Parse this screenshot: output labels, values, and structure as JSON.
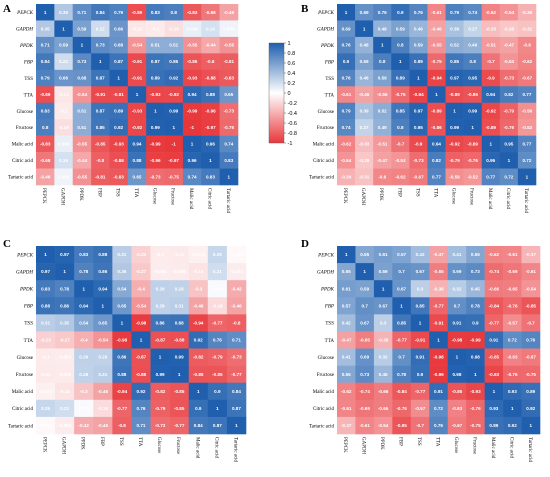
{
  "chart_data": {
    "type": "heatmap",
    "variables": [
      "PEPCK",
      "GAPDH",
      "PPDK",
      "FBP",
      "TSS",
      "TTA",
      "Glucose",
      "Fructose",
      "Malic acid",
      "Citric acid",
      "Tartaric acid"
    ],
    "italic_variables": [
      "PEPCK",
      "GAPDH",
      "PPDK",
      "FBP"
    ],
    "colorbar": {
      "ticks": [
        "1",
        "0.8",
        "0.6",
        "0.4",
        "0.2",
        "0",
        "-0.2",
        "-0.4",
        "-0.6",
        "-0.8",
        "-1"
      ],
      "vmin": -1,
      "vmax": 1,
      "high_color": "#1f5fae",
      "mid_color": "#ffffff",
      "low_color": "#e8373b"
    },
    "panels": [
      {
        "label": "A",
        "matrix": [
          [
            "1",
            "0.35",
            "0.71",
            "0.84",
            "0.79",
            "-0.89",
            "0.83",
            "0.8",
            "-0.83",
            "-0.68",
            "-0.46"
          ],
          [
            "0.35",
            "1",
            "0.59",
            "0.22",
            "0.66",
            "-0.12",
            "-0.1",
            "-0.16",
            "0.099",
            "0.19",
            "0.066"
          ],
          [
            "0.71",
            "0.59",
            "1",
            "0.73",
            "0.68",
            "-0.54",
            "0.51",
            "0.51",
            "-0.55",
            "-0.44",
            "-0.55"
          ],
          [
            "0.84",
            "0.22",
            "0.73",
            "1",
            "0.87",
            "-0.91",
            "0.87",
            "0.85",
            "-0.85",
            "-0.8",
            "-0.81"
          ],
          [
            "0.79",
            "0.66",
            "0.68",
            "0.87",
            "1",
            "-0.91",
            "0.89",
            "0.92",
            "-0.93",
            "-0.88",
            "-0.83"
          ],
          [
            "-0.89",
            "-0.12",
            "-0.54",
            "-0.91",
            "-0.91",
            "1",
            "-0.93",
            "-0.92",
            "0.94",
            "0.88",
            "0.65"
          ],
          [
            "0.83",
            "-0.1",
            "0.51",
            "0.87",
            "0.89",
            "-0.93",
            "1",
            "0.99",
            "-0.99",
            "-0.96",
            "-0.73"
          ],
          [
            "0.8",
            "-0.16",
            "0.51",
            "0.85",
            "0.92",
            "-0.92",
            "0.99",
            "1",
            "-1",
            "-0.97",
            "-0.75"
          ],
          [
            "-0.83",
            "0.099",
            "-0.55",
            "-0.85",
            "-0.93",
            "0.94",
            "-0.99",
            "-1",
            "1",
            "0.96",
            "0.74"
          ],
          [
            "-0.68",
            "0.19",
            "-0.44",
            "-0.8",
            "-0.88",
            "0.88",
            "-0.96",
            "-0.97",
            "0.96",
            "1",
            "0.83"
          ],
          [
            "-0.46",
            "0.066",
            "-0.55",
            "-0.81",
            "-0.83",
            "0.65",
            "-0.73",
            "-0.75",
            "0.74",
            "0.83",
            "1"
          ]
        ]
      },
      {
        "label": "B",
        "matrix": [
          [
            "1",
            "0.69",
            "0.76",
            "0.9",
            "0.76",
            "-0.61",
            "0.79",
            "0.74",
            "-0.62",
            "-0.54",
            "-0.39"
          ],
          [
            "0.69",
            "1",
            "0.48",
            "0.59",
            "0.46",
            "-0.46",
            "0.39",
            "0.27",
            "-0.33",
            "-0.28",
            "-0.31"
          ],
          [
            "0.76",
            "0.48",
            "1",
            "0.8",
            "0.59",
            "-0.55",
            "0.52",
            "0.49",
            "-0.51",
            "-0.47",
            "-0.6"
          ],
          [
            "0.9",
            "0.59",
            "0.8",
            "1",
            "0.89",
            "-0.75",
            "0.85",
            "0.8",
            "-0.7",
            "-0.53",
            "-0.62"
          ],
          [
            "0.76",
            "0.46",
            "0.59",
            "0.89",
            "1",
            "-0.94",
            "0.97",
            "0.95",
            "-0.9",
            "-0.73",
            "-0.67"
          ],
          [
            "-0.61",
            "-0.46",
            "-0.55",
            "-0.75",
            "-0.94",
            "1",
            "-0.89",
            "-0.86",
            "0.94",
            "0.82",
            "0.77"
          ],
          [
            "0.79",
            "0.39",
            "0.52",
            "0.85",
            "0.97",
            "-0.89",
            "1",
            "0.99",
            "-0.92",
            "-0.79",
            "-0.56"
          ],
          [
            "0.74",
            "0.27",
            "0.49",
            "0.8",
            "0.95",
            "-0.86",
            "0.99",
            "1",
            "-0.89",
            "-0.76",
            "-0.52"
          ],
          [
            "-0.62",
            "-0.33",
            "-0.51",
            "-0.7",
            "-0.9",
            "0.94",
            "-0.92",
            "-0.89",
            "1",
            "0.95",
            "0.77"
          ],
          [
            "-0.54",
            "-0.28",
            "-0.47",
            "-0.53",
            "-0.73",
            "0.82",
            "-0.79",
            "-0.76",
            "0.95",
            "1",
            "0.72"
          ],
          [
            "-0.39",
            "-0.31",
            "-0.6",
            "-0.62",
            "-0.67",
            "0.77",
            "-0.56",
            "-0.52",
            "0.77",
            "0.72",
            "1"
          ]
        ]
      },
      {
        "label": "C",
        "matrix": [
          [
            "1",
            "0.97",
            "0.83",
            "0.88",
            "0.31",
            "-0.23",
            "-0.1",
            "-0.11",
            "-0.074",
            "0.25",
            "-0.033"
          ],
          [
            "0.97",
            "1",
            "0.78",
            "0.86",
            "0.35",
            "-0.27",
            "-0.093",
            "-0.098",
            "-0.14",
            "0.21",
            "-0.094"
          ],
          [
            "0.83",
            "0.78",
            "1",
            "0.94",
            "0.54",
            "-0.4",
            "0.29",
            "0.28",
            "-0.3",
            "0.029",
            "-0.42"
          ],
          [
            "0.88",
            "0.86",
            "0.94",
            "1",
            "0.65",
            "-0.54",
            "0.29",
            "0.31",
            "-0.46",
            "-0.18",
            "-0.46"
          ],
          [
            "0.31",
            "0.35",
            "0.54",
            "0.65",
            "1",
            "-0.98",
            "0.86",
            "0.88",
            "-0.94",
            "-0.77",
            "-0.8"
          ],
          [
            "-0.23",
            "-0.27",
            "-0.4",
            "-0.54",
            "-0.98",
            "1",
            "-0.87",
            "-0.88",
            "0.92",
            "0.76",
            "0.71"
          ],
          [
            "-0.1",
            "-0.093",
            "0.29",
            "0.29",
            "0.86",
            "-0.87",
            "1",
            "0.99",
            "-0.82",
            "-0.79",
            "-0.73"
          ],
          [
            "-0.11",
            "-0.098",
            "0.28",
            "0.31",
            "0.88",
            "-0.88",
            "0.99",
            "1",
            "-0.85",
            "-0.85",
            "-0.77"
          ],
          [
            "-0.074",
            "-0.14",
            "-0.3",
            "-0.46",
            "-0.94",
            "0.92",
            "-0.82",
            "-0.85",
            "1",
            "0.9",
            "0.84"
          ],
          [
            "0.25",
            "0.21",
            "0.029",
            "-0.18",
            "-0.77",
            "0.76",
            "-0.79",
            "-0.85",
            "0.9",
            "1",
            "0.87"
          ],
          [
            "-0.033",
            "-0.094",
            "-0.42",
            "-0.46",
            "-0.8",
            "0.71",
            "-0.73",
            "-0.77",
            "0.84",
            "0.87",
            "1"
          ]
        ]
      },
      {
        "label": "D",
        "matrix": [
          [
            "1",
            "0.55",
            "0.61",
            "0.57",
            "0.42",
            "-0.47",
            "0.41",
            "0.55",
            "-0.62",
            "-0.61",
            "-0.37"
          ],
          [
            "0.55",
            "1",
            "0.59",
            "0.7",
            "0.67",
            "-0.65",
            "0.69",
            "0.73",
            "-0.74",
            "-0.69",
            "-0.61"
          ],
          [
            "0.61",
            "0.59",
            "1",
            "0.67",
            "0.3",
            "-0.38",
            "0.32",
            "0.45",
            "-0.66",
            "-0.65",
            "-0.54"
          ],
          [
            "0.57",
            "0.7",
            "0.67",
            "1",
            "0.85",
            "-0.77",
            "0.7",
            "0.78",
            "-0.84",
            "-0.76",
            "-0.85"
          ],
          [
            "0.42",
            "0.67",
            "0.3",
            "0.85",
            "1",
            "-0.91",
            "0.91",
            "0.9",
            "-0.77",
            "-0.57",
            "-0.7"
          ],
          [
            "-0.47",
            "-0.65",
            "-0.38",
            "-0.77",
            "-0.91",
            "1",
            "-0.98",
            "-0.99",
            "0.91",
            "0.72",
            "0.76"
          ],
          [
            "0.41",
            "0.69",
            "0.32",
            "0.7",
            "0.91",
            "-0.98",
            "1",
            "0.98",
            "-0.85",
            "-0.63",
            "-0.67"
          ],
          [
            "0.55",
            "0.73",
            "0.45",
            "0.78",
            "0.9",
            "-0.99",
            "0.98",
            "1",
            "-0.93",
            "-0.76",
            "-0.75"
          ],
          [
            "-0.62",
            "-0.74",
            "-0.66",
            "-0.84",
            "-0.77",
            "0.91",
            "-0.85",
            "-0.93",
            "1",
            "0.93",
            "0.89"
          ],
          [
            "-0.61",
            "-0.69",
            "-0.65",
            "-0.76",
            "-0.57",
            "0.72",
            "-0.63",
            "-0.76",
            "0.93",
            "1",
            "0.92"
          ],
          [
            "-0.37",
            "-0.61",
            "-0.54",
            "-0.85",
            "-0.7",
            "0.76",
            "-0.67",
            "-0.75",
            "0.89",
            "0.92",
            "1"
          ]
        ]
      }
    ]
  }
}
